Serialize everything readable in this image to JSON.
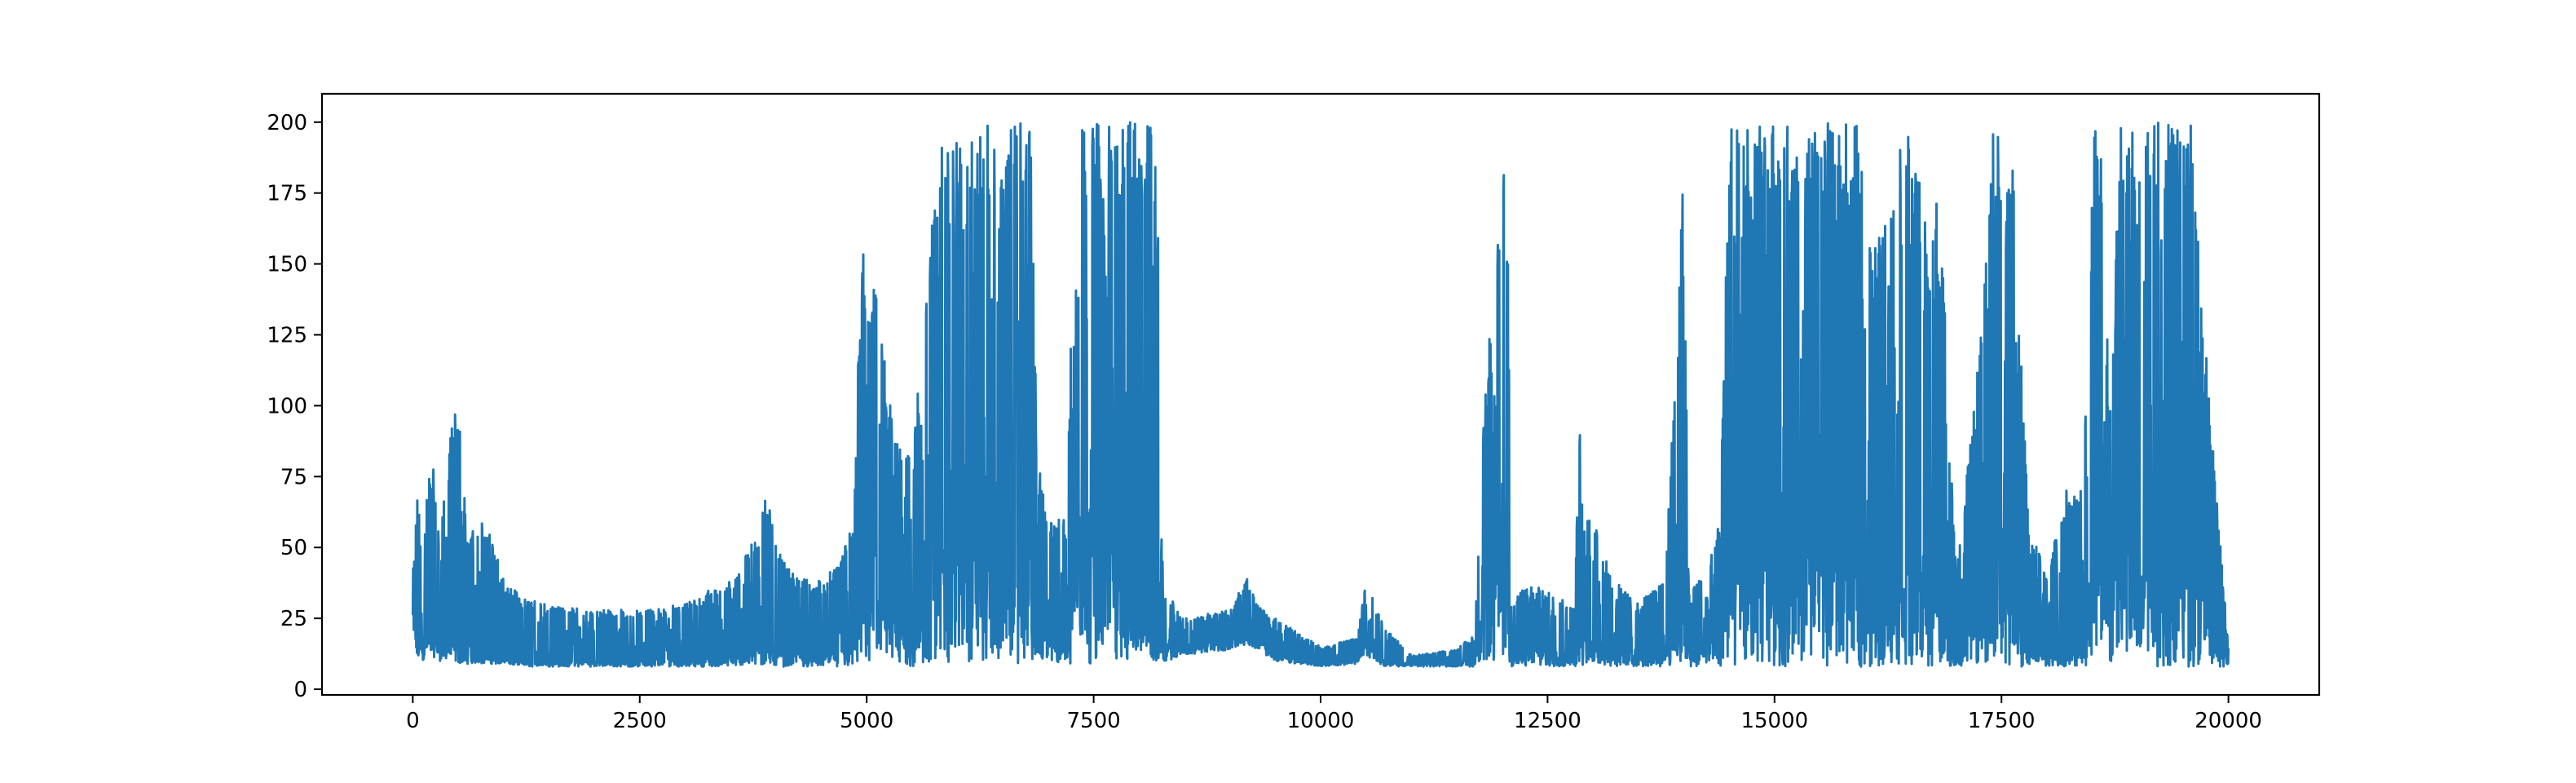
{
  "colors": {
    "series": "#1f77b4",
    "axes": "#000000",
    "background": "#ffffff"
  },
  "chart_data": {
    "type": "line",
    "title": "",
    "xlabel": "",
    "ylabel": "",
    "xlim": [
      -1000,
      21000
    ],
    "ylim": [
      -2,
      210
    ],
    "grid": false,
    "legend": "none",
    "xticks": [
      0,
      2500,
      5000,
      7500,
      10000,
      12500,
      15000,
      17500,
      20000
    ],
    "xtick_labels": [
      "0",
      "2500",
      "5000",
      "7500",
      "10000",
      "12500",
      "15000",
      "17500",
      "20000"
    ],
    "yticks": [
      0,
      25,
      50,
      75,
      100,
      125,
      150,
      175,
      200
    ],
    "ytick_labels": [
      "0",
      "25",
      "50",
      "75",
      "100",
      "125",
      "150",
      "175",
      "200"
    ],
    "x_range": [
      0,
      20000
    ],
    "envelope": {
      "x": [
        0,
        50,
        100,
        200,
        300,
        400,
        500,
        600,
        800,
        1000,
        1200,
        1500,
        2000,
        2500,
        3000,
        3500,
        3800,
        3900,
        4000,
        4200,
        4500,
        4700,
        4850,
        4900,
        4950,
        5100,
        5300,
        5500,
        5700,
        5800,
        5900,
        6000,
        6100,
        6200,
        6400,
        6500,
        6600,
        6700,
        6800,
        6900,
        7000,
        7200,
        7300,
        7500,
        7700,
        7900,
        8000,
        8100,
        8150,
        8200,
        8250,
        8300,
        8500,
        9000,
        9200,
        9300,
        9500,
        10000,
        10400,
        10500,
        10700,
        11000,
        11500,
        11700,
        11800,
        11900,
        12000,
        12050,
        12100,
        12300,
        12500,
        12800,
        12850,
        12900,
        13000,
        13200,
        13500,
        13800,
        14000,
        14050,
        14200,
        14400,
        14500,
        14700,
        14900,
        15100,
        15300,
        15500,
        15700,
        15900,
        16100,
        16300,
        16500,
        16700,
        16800,
        16900,
        17000,
        17200,
        17400,
        17500,
        17600,
        17800,
        18000,
        18200,
        18400,
        18500,
        18600,
        18700,
        18800,
        18900,
        19000,
        19200,
        19400,
        19600,
        19800,
        19900,
        20000
      ],
      "upper": [
        40,
        75,
        50,
        86,
        55,
        85,
        110,
        55,
        60,
        40,
        32,
        30,
        28,
        28,
        30,
        40,
        55,
        70,
        50,
        40,
        38,
        45,
        60,
        112,
        158,
        140,
        90,
        80,
        160,
        200,
        190,
        200,
        200,
        200,
        200,
        180,
        200,
        200,
        200,
        80,
        60,
        60,
        200,
        200,
        200,
        200,
        200,
        200,
        200,
        200,
        48,
        35,
        25,
        28,
        40,
        30,
        25,
        15,
        18,
        38,
        22,
        12,
        14,
        20,
        100,
        140,
        180,
        200,
        30,
        38,
        35,
        30,
        96,
        60,
        60,
        40,
        30,
        40,
        190,
        40,
        40,
        60,
        200,
        200,
        200,
        200,
        200,
        200,
        200,
        200,
        155,
        190,
        200,
        160,
        180,
        120,
        40,
        100,
        200,
        200,
        200,
        60,
        40,
        70,
        70,
        200,
        200,
        100,
        200,
        200,
        200,
        200,
        200,
        200,
        100,
        55,
        15
      ],
      "lower": [
        20,
        10,
        10,
        12,
        10,
        10,
        9,
        9,
        9,
        9,
        8,
        8,
        8,
        8,
        8,
        8,
        8,
        8,
        8,
        8,
        8,
        8,
        8,
        8,
        8,
        8,
        8,
        8,
        8,
        9,
        9,
        9,
        9,
        9,
        9,
        9,
        9,
        9,
        9,
        9,
        9,
        9,
        9,
        9,
        9,
        9,
        12,
        15,
        10,
        10,
        10,
        10,
        12,
        14,
        16,
        14,
        10,
        8,
        9,
        12,
        8,
        8,
        8,
        8,
        9,
        9,
        9,
        9,
        8,
        8,
        8,
        8,
        8,
        8,
        8,
        8,
        8,
        8,
        8,
        8,
        8,
        8,
        8,
        8,
        8,
        8,
        8,
        8,
        8,
        8,
        8,
        8,
        8,
        8,
        8,
        8,
        8,
        8,
        8,
        8,
        8,
        8,
        8,
        8,
        8,
        8,
        8,
        8,
        8,
        8,
        8,
        8,
        8,
        8,
        8,
        8,
        8
      ],
      "mid": [
        25,
        20,
        22,
        25,
        22,
        22,
        20,
        18,
        15,
        12,
        11,
        11,
        11,
        12,
        14,
        16,
        22,
        25,
        20,
        18,
        16,
        18,
        20,
        40,
        60,
        50,
        35,
        30,
        50,
        80,
        80,
        90,
        90,
        90,
        90,
        80,
        90,
        80,
        80,
        30,
        25,
        25,
        100,
        100,
        100,
        100,
        30,
        25,
        20,
        18,
        22,
        20,
        18,
        20,
        24,
        20,
        15,
        10,
        11,
        22,
        12,
        10,
        10,
        12,
        50,
        60,
        80,
        80,
        15,
        20,
        18,
        15,
        35,
        30,
        25,
        20,
        15,
        20,
        40,
        20,
        20,
        25,
        80,
        80,
        80,
        80,
        80,
        80,
        80,
        80,
        60,
        70,
        70,
        60,
        60,
        40,
        15,
        40,
        100,
        100,
        100,
        20,
        15,
        20,
        25,
        80,
        80,
        40,
        80,
        80,
        80,
        80,
        80,
        80,
        40,
        25,
        10
      ]
    },
    "series": [
      {
        "color": "#1f77b4",
        "points": 20000
      }
    ]
  }
}
